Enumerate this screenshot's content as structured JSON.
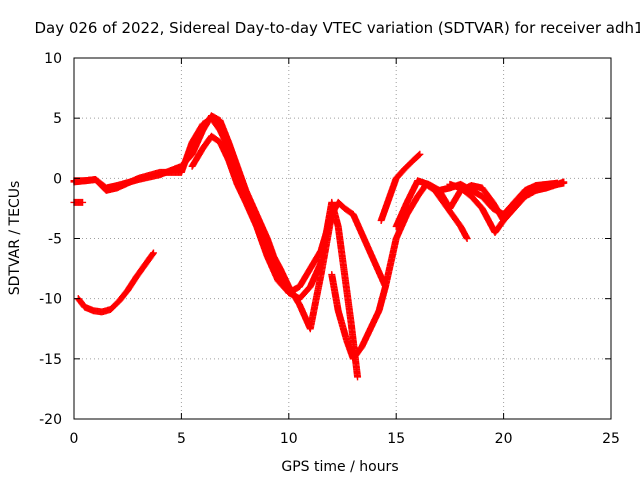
{
  "chart_data": {
    "type": "scatter",
    "title": "Day 026 of 2022, Sidereal Day-to-day VTEC variation (SDTVAR) for receiver adh1",
    "xlabel": "GPS time / hours",
    "ylabel": "SDTVAR / TECUs",
    "xlim": [
      0,
      25
    ],
    "ylim": [
      -20,
      10
    ],
    "xticks": [
      0,
      5,
      10,
      15,
      20,
      25
    ],
    "yticks": [
      -20,
      -15,
      -10,
      -5,
      0,
      5,
      10
    ],
    "grid": true,
    "marker": "+",
    "series_color": "#ff0000",
    "series": [
      {
        "name": "track-1",
        "x": [
          0.0,
          0.5,
          1.0,
          1.5,
          2.0,
          3.0,
          4.0,
          5.0,
          5.5,
          6.0,
          6.4,
          6.8,
          7.2,
          7.6,
          8.0,
          8.5,
          9.0,
          9.3,
          9.6,
          10.0,
          10.5,
          11.0,
          11.5,
          12.0
        ],
        "y": [
          -0.3,
          -0.2,
          -0.1,
          -0.8,
          -0.6,
          -0.1,
          0.3,
          1.0,
          2.0,
          4.0,
          5.2,
          4.8,
          3.0,
          1.0,
          -1.0,
          -3.0,
          -5.0,
          -6.5,
          -7.5,
          -9.0,
          -10.5,
          -12.5,
          -8.0,
          -3.0
        ]
      },
      {
        "name": "track-2",
        "x": [
          0.0,
          0.5,
          1.0,
          1.5,
          2.0,
          3.0,
          4.0,
          5.0,
          5.5,
          6.0,
          6.4,
          6.8,
          7.2,
          7.6,
          8.0,
          8.5,
          9.0,
          9.5,
          10.0,
          10.5,
          11.0,
          11.5,
          12.0,
          12.3,
          12.6,
          13.0,
          13.5,
          14.0,
          14.5
        ],
        "y": [
          -0.2,
          -0.2,
          -0.1,
          -1.0,
          -0.8,
          0.0,
          0.5,
          0.5,
          3.0,
          4.5,
          5.0,
          4.0,
          2.5,
          0.5,
          -1.5,
          -3.5,
          -6.0,
          -8.0,
          -9.5,
          -9.0,
          -7.5,
          -6.0,
          -3.0,
          -2.0,
          -2.5,
          -3.0,
          -5.0,
          -7.0,
          -9.0
        ]
      },
      {
        "name": "track-3",
        "x": [
          5.5,
          6.0,
          6.4,
          6.8,
          7.2,
          7.6,
          8.0,
          8.5,
          9.0,
          9.5,
          10.0,
          10.5,
          11.0,
          11.5,
          11.8,
          12.0,
          12.3,
          12.6,
          12.9,
          13.2
        ],
        "y": [
          1.0,
          2.5,
          3.5,
          3.0,
          1.5,
          -0.5,
          -2.0,
          -4.0,
          -6.5,
          -8.5,
          -9.5,
          -10.0,
          -9.0,
          -7.0,
          -4.0,
          -2.0,
          -4.0,
          -8.0,
          -12.0,
          -16.5
        ]
      },
      {
        "name": "track-4",
        "x": [
          12.0,
          12.3,
          12.7,
          13.0,
          13.4,
          13.8,
          14.2,
          14.5,
          15.0,
          15.5,
          16.0,
          16.4,
          16.8,
          17.2,
          17.6,
          18.0,
          18.3
        ],
        "y": [
          -8.0,
          -11.0,
          -13.5,
          -15.0,
          -14.0,
          -12.5,
          -11.0,
          -9.0,
          -5.0,
          -3.0,
          -1.5,
          -0.5,
          -1.0,
          -2.0,
          -3.0,
          -4.0,
          -5.0
        ]
      },
      {
        "name": "track-5",
        "x": [
          14.3,
          14.7,
          15.0,
          15.4,
          15.8,
          16.1
        ],
        "y": [
          -3.5,
          -1.5,
          0.0,
          0.8,
          1.5,
          2.0
        ]
      },
      {
        "name": "track-6",
        "x": [
          15.0,
          15.5,
          16.0,
          16.5,
          17.0,
          17.5,
          18.0,
          18.5,
          19.0,
          19.5,
          20.0,
          20.5,
          21.0,
          21.5,
          22.0,
          22.5,
          22.8
        ],
        "y": [
          -4.0,
          -2.0,
          -0.2,
          -0.5,
          -1.0,
          -0.8,
          -0.5,
          -1.0,
          -1.5,
          -2.5,
          -3.0,
          -2.0,
          -1.5,
          -1.0,
          -0.8,
          -0.5,
          -0.3
        ]
      },
      {
        "name": "track-7",
        "x": [
          16.5,
          17.0,
          17.5,
          18.0,
          18.5,
          19.0,
          19.5,
          20.0,
          20.5,
          21.0,
          21.5,
          22.0,
          22.5,
          22.8
        ],
        "y": [
          -0.5,
          -1.0,
          -2.5,
          -1.0,
          -0.6,
          -0.8,
          -2.0,
          -3.5,
          -2.5,
          -1.5,
          -1.0,
          -0.7,
          -0.5,
          -0.4
        ]
      },
      {
        "name": "track-8",
        "x": [
          17.5,
          18.0,
          18.5,
          19.0,
          19.3,
          19.6,
          20.0,
          20.5,
          21.0,
          21.5,
          22.0,
          22.5
        ],
        "y": [
          -0.5,
          -0.8,
          -1.5,
          -2.5,
          -3.5,
          -4.5,
          -3.5,
          -2.0,
          -1.0,
          -0.6,
          -0.5,
          -0.4
        ]
      },
      {
        "name": "track-9",
        "x": [
          0.0,
          0.4
        ],
        "y": [
          -2.0,
          -2.0
        ]
      },
      {
        "name": "track-10",
        "x": [
          0.2,
          0.5,
          0.9,
          1.3,
          1.7,
          2.1,
          2.5,
          2.9,
          3.3,
          3.7
        ],
        "y": [
          -10.0,
          -10.7,
          -11.0,
          -11.1,
          -10.9,
          -10.2,
          -9.3,
          -8.2,
          -7.2,
          -6.2
        ]
      }
    ]
  }
}
